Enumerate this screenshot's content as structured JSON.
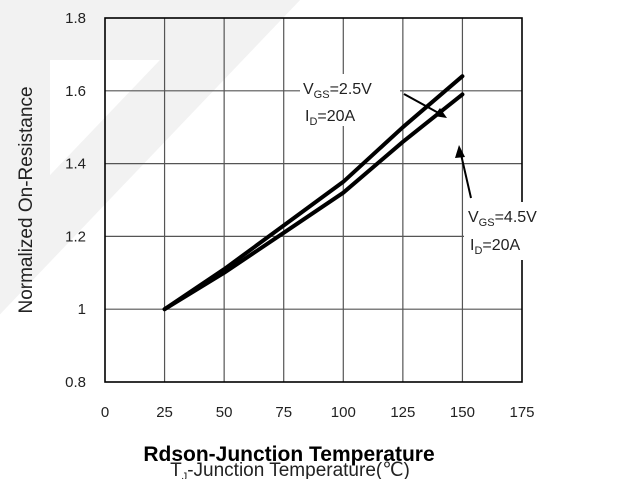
{
  "chart_data": {
    "type": "line",
    "xlabel": "T₁-Junction Temperature(℃)",
    "xlabel_main": "T",
    "xlabel_sub": "J",
    "xlabel_rest": "-Junction Temperature(℃)",
    "ylabel": "Normalized On-Resistance",
    "caption": "Rdson-Junction Temperature",
    "xlim": [
      0,
      175
    ],
    "ylim": [
      0.8,
      1.8
    ],
    "x_ticks": [
      0,
      25,
      50,
      75,
      100,
      125,
      150,
      175
    ],
    "x_tick_labels": [
      "0",
      "25",
      "50",
      "75",
      "100",
      "125",
      "150",
      "175"
    ],
    "y_ticks": [
      0.8,
      1.0,
      1.2,
      1.4,
      1.6,
      1.8
    ],
    "y_tick_labels": [
      "0.8",
      "1",
      "1.2",
      "1.4",
      "1.6",
      "1.8"
    ],
    "grid": true,
    "series": [
      {
        "id": "vgs25",
        "x": [
          25,
          50,
          75,
          100,
          125,
          150
        ],
        "values": [
          1.0,
          1.11,
          1.23,
          1.35,
          1.5,
          1.64
        ]
      },
      {
        "id": "vgs45",
        "x": [
          25,
          50,
          75,
          100,
          125,
          150
        ],
        "values": [
          1.0,
          1.1,
          1.21,
          1.32,
          1.46,
          1.59
        ]
      }
    ],
    "annotations": [
      {
        "target": "vgs25",
        "line1_main": "V",
        "line1_sub": "GS",
        "line1_rest": "=2.5V",
        "line2_main": "I",
        "line2_sub": "D",
        "line2_rest": "=20A",
        "arrow_to": [
          125,
          1.52
        ]
      },
      {
        "target": "vgs45",
        "line1_main": "V",
        "line1_sub": "GS",
        "line1_rest": "=4.5V",
        "line2_main": "I",
        "line2_sub": "D",
        "line2_rest": "=20A",
        "arrow_to": [
          124,
          1.46
        ]
      }
    ]
  }
}
